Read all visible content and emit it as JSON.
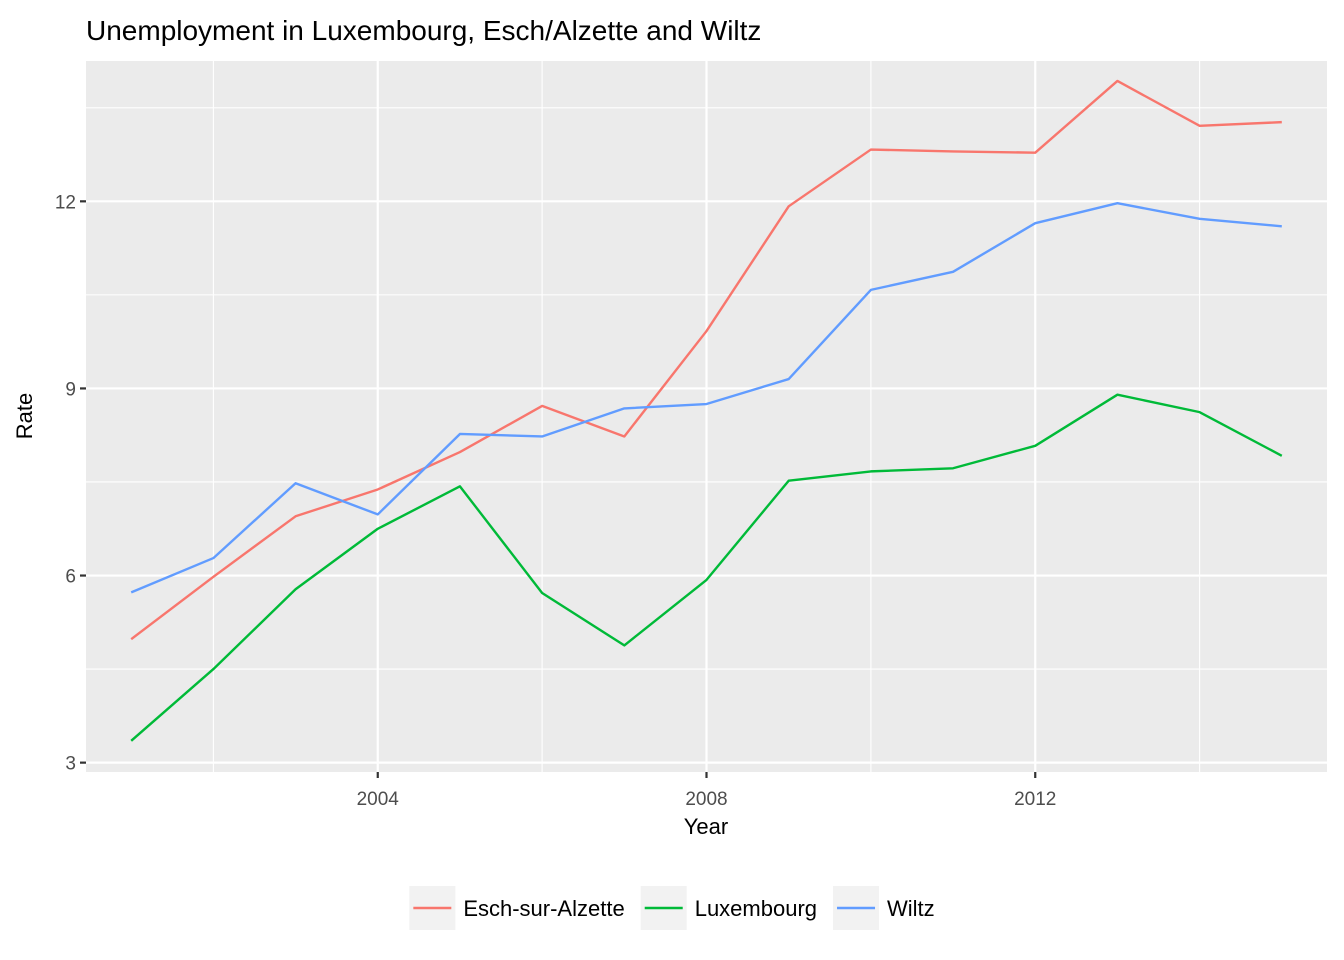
{
  "chart_data": {
    "type": "line",
    "title": "Unemployment in Luxembourg, Esch/Alzette and Wiltz",
    "xlabel": "Year",
    "ylabel": "Rate",
    "x": [
      2001,
      2002,
      2003,
      2004,
      2005,
      2006,
      2007,
      2008,
      2009,
      2010,
      2011,
      2012,
      2013,
      2014,
      2015
    ],
    "xlim": [
      2000.45,
      2015.55
    ],
    "ylim": [
      2.85,
      14.25
    ],
    "x_ticks": [
      2004,
      2008,
      2012
    ],
    "x_tick_labels": [
      "2004",
      "2008",
      "2012"
    ],
    "y_ticks": [
      3,
      6,
      9,
      12
    ],
    "y_tick_labels": [
      "3",
      "6",
      "9",
      "12"
    ],
    "grid": true,
    "legend_position": "bottom",
    "series": [
      {
        "name": "Esch-sur-Alzette",
        "color": "#F8766D",
        "values": [
          4.98,
          5.98,
          6.95,
          7.38,
          7.98,
          8.72,
          8.23,
          9.92,
          11.92,
          12.83,
          12.8,
          12.78,
          13.93,
          13.21,
          13.27
        ]
      },
      {
        "name": "Luxembourg",
        "color": "#00BA38",
        "values": [
          3.35,
          4.5,
          5.78,
          6.75,
          7.43,
          5.72,
          4.88,
          5.93,
          7.52,
          7.67,
          7.72,
          8.08,
          8.9,
          8.62,
          7.92
        ]
      },
      {
        "name": "Wiltz",
        "color": "#619CFF",
        "values": [
          5.73,
          6.28,
          7.48,
          6.98,
          8.27,
          8.23,
          8.68,
          8.75,
          9.15,
          10.58,
          10.87,
          11.65,
          11.97,
          11.72,
          11.6
        ]
      }
    ]
  }
}
